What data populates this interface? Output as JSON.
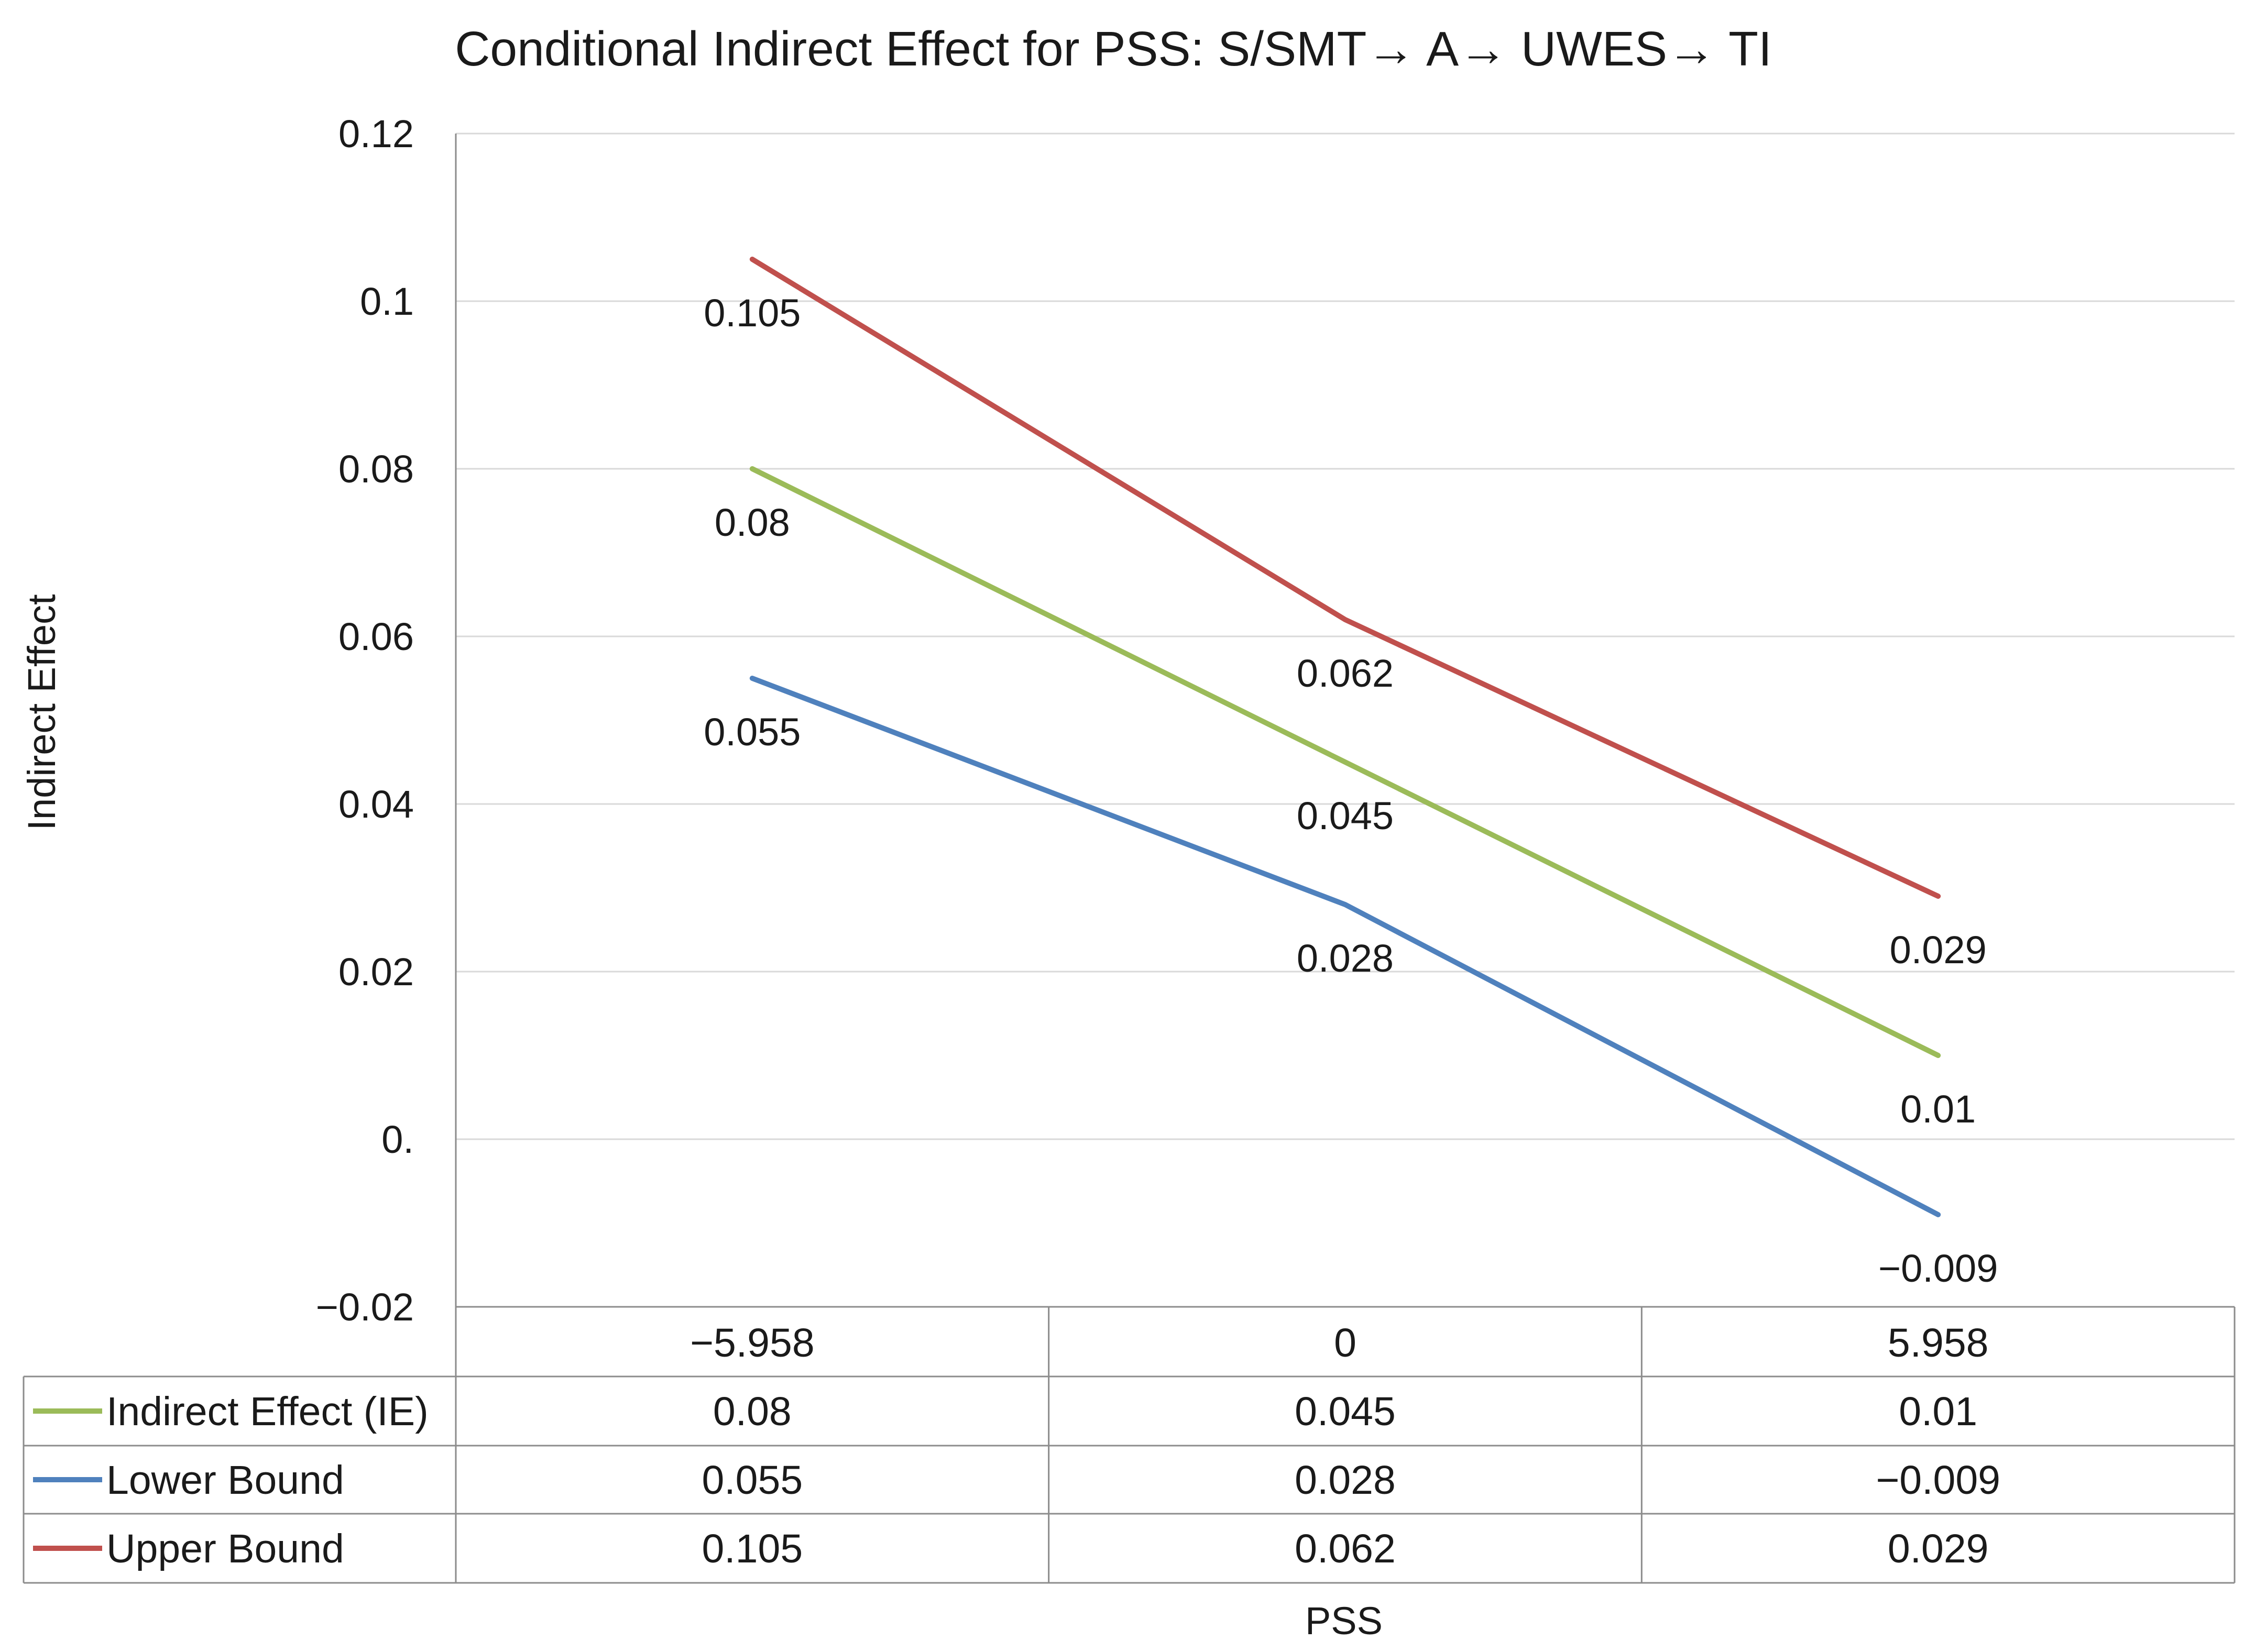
{
  "chart_data": {
    "type": "line",
    "title": "Conditional Indirect Effect for PSS: S/SMT→ A→ UWES→ TI",
    "xlabel": "PSS",
    "ylabel": "Indirect Effect",
    "categories": [
      "−5.958",
      "0",
      "5.958"
    ],
    "ylim": [
      -0.02,
      0.12
    ],
    "yticks": [
      0.12,
      0.1,
      0.08,
      0.06,
      0.04,
      0.02,
      0,
      -0.02
    ],
    "ytick_labels": [
      "0.12",
      "0.1",
      "0.08",
      "0.06",
      "0.04",
      "0.02",
      "0.",
      "−0.02"
    ],
    "grid": true,
    "legend": "data-table",
    "series": [
      {
        "name": "Indirect Effect (IE)",
        "color": "#9bbb59",
        "values": [
          0.08,
          0.045,
          0.01
        ],
        "labels": [
          "0.08",
          "0.045",
          "0.01"
        ]
      },
      {
        "name": "Lower Bound",
        "color": "#4f81bd",
        "values": [
          0.055,
          0.028,
          -0.009
        ],
        "labels": [
          "0.055",
          "0.028",
          "−0.009"
        ]
      },
      {
        "name": "Upper Bound",
        "color": "#c0504d",
        "values": [
          0.105,
          0.062,
          0.029
        ],
        "labels": [
          "0.105",
          "0.062",
          "0.029"
        ]
      }
    ]
  }
}
